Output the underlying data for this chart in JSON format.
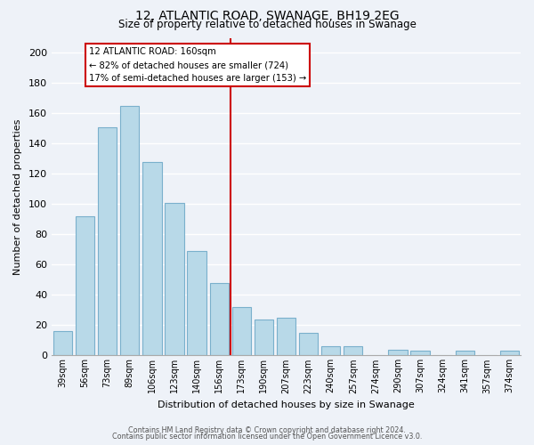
{
  "title": "12, ATLANTIC ROAD, SWANAGE, BH19 2EG",
  "subtitle": "Size of property relative to detached houses in Swanage",
  "xlabel": "Distribution of detached houses by size in Swanage",
  "ylabel": "Number of detached properties",
  "bar_labels": [
    "39sqm",
    "56sqm",
    "73sqm",
    "89sqm",
    "106sqm",
    "123sqm",
    "140sqm",
    "156sqm",
    "173sqm",
    "190sqm",
    "207sqm",
    "223sqm",
    "240sqm",
    "257sqm",
    "274sqm",
    "290sqm",
    "307sqm",
    "324sqm",
    "341sqm",
    "357sqm",
    "374sqm"
  ],
  "bar_values": [
    16,
    92,
    151,
    165,
    128,
    101,
    69,
    48,
    32,
    24,
    25,
    15,
    6,
    6,
    0,
    4,
    3,
    0,
    3,
    0,
    3
  ],
  "bar_color": "#b8d9e8",
  "bar_edge_color": "#7ab0cc",
  "marker_index": 7,
  "marker_color": "#cc0000",
  "ylim": [
    0,
    210
  ],
  "yticks": [
    0,
    20,
    40,
    60,
    80,
    100,
    120,
    140,
    160,
    180,
    200
  ],
  "annotation_title": "12 ATLANTIC ROAD: 160sqm",
  "annotation_line1": "← 82% of detached houses are smaller (724)",
  "annotation_line2": "17% of semi-detached houses are larger (153) →",
  "annotation_box_color": "#ffffff",
  "annotation_box_edge": "#cc0000",
  "footer_line1": "Contains HM Land Registry data © Crown copyright and database right 2024.",
  "footer_line2": "Contains public sector information licensed under the Open Government Licence v3.0.",
  "background_color": "#eef2f8",
  "plot_bg_color": "#eef2f8",
  "grid_color": "#ffffff"
}
